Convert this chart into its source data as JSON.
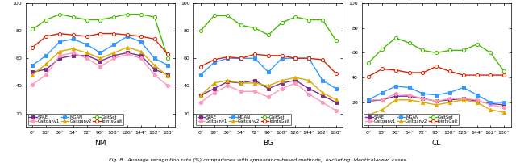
{
  "angles": [
    0,
    18,
    36,
    54,
    72,
    90,
    108,
    126,
    144,
    162,
    180
  ],
  "angle_labels": [
    "0°",
    "18°",
    "36°",
    "54°",
    "72°",
    "90°",
    "108°",
    "126°",
    "144°",
    "162°",
    "180°"
  ],
  "NM": {
    "SPAE": [
      50,
      52,
      60,
      62,
      62,
      58,
      62,
      64,
      62,
      52,
      48
    ],
    "Gaitganv1": [
      41,
      48,
      62,
      64,
      60,
      54,
      60,
      63,
      60,
      48,
      40
    ],
    "MGAN": [
      55,
      62,
      72,
      74,
      70,
      64,
      70,
      76,
      72,
      60,
      55
    ],
    "Gaitganv2": [
      48,
      56,
      65,
      67,
      64,
      60,
      64,
      68,
      65,
      55,
      47
    ],
    "GaitSet": [
      81,
      88,
      92,
      90,
      88,
      88,
      90,
      92,
      92,
      90,
      60
    ],
    "JointsGait": [
      68,
      76,
      78,
      77,
      76,
      78,
      78,
      77,
      76,
      74,
      63
    ]
  },
  "BG": {
    "SPAE": [
      33,
      38,
      43,
      42,
      44,
      38,
      42,
      44,
      38,
      33,
      28
    ],
    "Gaitganv1": [
      28,
      35,
      40,
      36,
      36,
      32,
      38,
      42,
      34,
      28,
      22
    ],
    "MGAN": [
      48,
      57,
      60,
      60,
      60,
      50,
      60,
      60,
      60,
      44,
      38
    ],
    "Gaitganv2": [
      33,
      42,
      44,
      42,
      42,
      40,
      44,
      46,
      44,
      35,
      30
    ],
    "GaitSet": [
      80,
      91,
      91,
      84,
      82,
      77,
      86,
      90,
      88,
      88,
      73
    ],
    "JointsGait": [
      54,
      59,
      61,
      60,
      63,
      62,
      62,
      60,
      60,
      59,
      49
    ]
  },
  "CL": {
    "SPAE": [
      21,
      22,
      25,
      25,
      23,
      21,
      22,
      23,
      21,
      19,
      18
    ],
    "Gaitganv1": [
      22,
      22,
      27,
      26,
      23,
      21,
      23,
      23,
      22,
      18,
      16
    ],
    "MGAN": [
      22,
      28,
      33,
      32,
      27,
      26,
      28,
      32,
      26,
      20,
      20
    ],
    "Gaitganv2": [
      10,
      14,
      22,
      22,
      20,
      18,
      20,
      22,
      20,
      14,
      12
    ],
    "GaitSet": [
      52,
      63,
      72,
      68,
      62,
      60,
      62,
      62,
      67,
      60,
      45
    ],
    "JointsGait": [
      41,
      47,
      46,
      44,
      44,
      49,
      45,
      42,
      42,
      42,
      42
    ]
  },
  "colors": {
    "SPAE": "#7B2D8B",
    "Gaitganv1": "#FF99BB",
    "MGAN": "#3399FF",
    "Gaitganv2": "#DDAA00",
    "GaitSet": "#44BB00",
    "JointsGait": "#DD2200"
  },
  "markers": {
    "SPAE": "s",
    "Gaitganv1": "o",
    "MGAN": "s",
    "Gaitganv2": "^",
    "GaitSet": "o",
    "JointsGait": "o"
  },
  "markerfacecolor": {
    "SPAE": "#7B2D8B",
    "Gaitganv1": "#FF99BB",
    "MGAN": "#3399FF",
    "Gaitganv2": "#DDAA00",
    "GaitSet": "white",
    "JointsGait": "white"
  },
  "ylim_NM": [
    10,
    100
  ],
  "ylim_BG": [
    10,
    100
  ],
  "ylim_CL": [
    0,
    100
  ],
  "yticks_NM": [
    20,
    40,
    60,
    80,
    100
  ],
  "yticks_BG": [
    20,
    40,
    60,
    80,
    100
  ],
  "yticks_CL": [
    20,
    40,
    60,
    80,
    100
  ],
  "xlabel_NM": "NM",
  "xlabel_BG": "BG",
  "xlabel_CL": "CL",
  "fig_caption": "Fig. 8.  Average recognition rate (%) comparisons with appearance-based methods,  excluding  identical-view  cases.",
  "linewidth": 1.0,
  "markersize": 3.0
}
